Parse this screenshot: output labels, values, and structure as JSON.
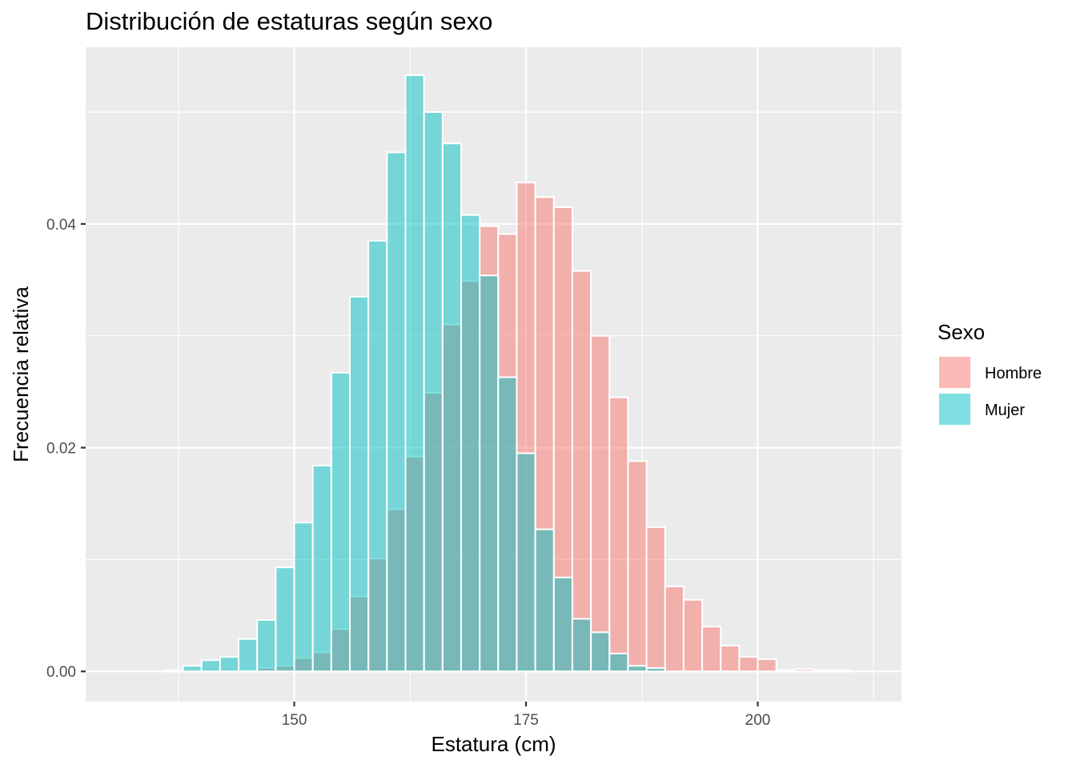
{
  "chart_data": {
    "type": "histogram",
    "title": "Distribución de estaturas según sexo",
    "xlabel": "Estatura (cm)",
    "ylabel": "Frecuencia relativa",
    "xlim": [
      127.5,
      215.5
    ],
    "ylim": [
      -0.0027,
      0.0558
    ],
    "x_ticks": [
      150,
      175,
      200
    ],
    "x_tick_labels": [
      "150",
      "175",
      "200"
    ],
    "y_ticks": [
      0.0,
      0.02,
      0.04
    ],
    "y_tick_labels": [
      "0.00",
      "0.02",
      "0.04"
    ],
    "grid": true,
    "legend": {
      "title": "Sexo",
      "position": "right"
    },
    "bin_width": 2,
    "bin_centers": [
      131,
      133,
      135,
      137,
      139,
      141,
      143,
      145,
      147,
      149,
      151,
      153,
      155,
      157,
      159,
      161,
      163,
      165,
      167,
      169,
      171,
      173,
      175,
      177,
      179,
      181,
      183,
      185,
      187,
      189,
      191,
      193,
      195,
      197,
      199,
      201,
      203,
      205,
      207,
      209
    ],
    "series": [
      {
        "name": "Hombre",
        "color": "#F8766D",
        "values": [
          0,
          0,
          0,
          0,
          0,
          0,
          0,
          0.0001,
          0.0003,
          0.0005,
          0.0012,
          0.0017,
          0.0038,
          0.0067,
          0.0101,
          0.0145,
          0.0192,
          0.0249,
          0.031,
          0.0349,
          0.0398,
          0.0391,
          0.0437,
          0.0424,
          0.0415,
          0.0358,
          0.03,
          0.0245,
          0.0188,
          0.0129,
          0.0076,
          0.0064,
          0.004,
          0.0023,
          0.0013,
          0.0011,
          0.0001,
          0.0002,
          0.0001,
          0.0001
        ]
      },
      {
        "name": "Mujer",
        "color": "#00BFC4",
        "values": [
          0,
          0,
          0,
          0.0001,
          0.0005,
          0.001,
          0.0013,
          0.0029,
          0.0046,
          0.0093,
          0.0133,
          0.0184,
          0.0267,
          0.0335,
          0.0385,
          0.0464,
          0.0533,
          0.05,
          0.0472,
          0.0408,
          0.0354,
          0.0263,
          0.0195,
          0.0127,
          0.0084,
          0.0047,
          0.0035,
          0.0016,
          0.0005,
          0.0003,
          0,
          0,
          0,
          0,
          0,
          0,
          0,
          0,
          0,
          0
        ]
      }
    ]
  }
}
